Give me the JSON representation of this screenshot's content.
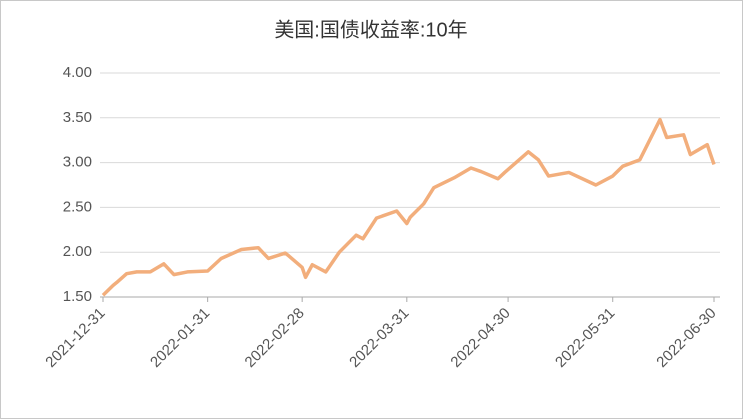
{
  "chart_data": {
    "type": "line",
    "title": "美国:国债收益率:10年",
    "x": [
      "2021-12-31",
      "2022-01-03",
      "2022-01-04",
      "2022-01-07",
      "2022-01-10",
      "2022-01-14",
      "2022-01-18",
      "2022-01-21",
      "2022-01-25",
      "2022-01-31",
      "2022-02-04",
      "2022-02-10",
      "2022-02-15",
      "2022-02-18",
      "2022-02-23",
      "2022-02-24",
      "2022-02-28",
      "2022-03-01",
      "2022-03-03",
      "2022-03-07",
      "2022-03-11",
      "2022-03-16",
      "2022-03-18",
      "2022-03-22",
      "2022-03-28",
      "2022-03-31",
      "2022-04-01",
      "2022-04-05",
      "2022-04-08",
      "2022-04-14",
      "2022-04-19",
      "2022-04-22",
      "2022-04-27",
      "2022-04-29",
      "2022-05-06",
      "2022-05-09",
      "2022-05-12",
      "2022-05-18",
      "2022-05-26",
      "2022-05-31",
      "2022-06-03",
      "2022-06-08",
      "2022-06-14",
      "2022-06-16",
      "2022-06-21",
      "2022-06-23",
      "2022-06-28",
      "2022-06-30"
    ],
    "values": [
      1.52,
      1.63,
      1.66,
      1.76,
      1.78,
      1.78,
      1.87,
      1.75,
      1.78,
      1.79,
      1.93,
      2.03,
      2.05,
      1.93,
      1.99,
      1.96,
      1.83,
      1.72,
      1.86,
      1.78,
      2.0,
      2.19,
      2.15,
      2.38,
      2.46,
      2.32,
      2.39,
      2.54,
      2.72,
      2.83,
      2.94,
      2.9,
      2.82,
      2.89,
      3.12,
      3.03,
      2.85,
      2.89,
      2.75,
      2.85,
      2.96,
      3.03,
      3.48,
      3.28,
      3.31,
      3.09,
      3.2,
      2.98
    ],
    "color": "#f2ae7c",
    "xlim": [
      "2021-12-31",
      "2022-06-30"
    ],
    "xticks": [
      "2021-12-31",
      "2022-01-31",
      "2022-02-28",
      "2022-03-31",
      "2022-04-30",
      "2022-05-31",
      "2022-06-30"
    ],
    "ylim": [
      1.5,
      4
    ],
    "yticks": [
      {
        "value": 1.5,
        "label": "1.50"
      },
      {
        "value": 2,
        "label": "2.00"
      },
      {
        "value": 2.5,
        "label": "2.50"
      },
      {
        "value": 3,
        "label": "3.00"
      },
      {
        "value": 3.5,
        "label": "3.50"
      },
      {
        "value": 4,
        "label": "4.00"
      }
    ],
    "grid": true
  }
}
